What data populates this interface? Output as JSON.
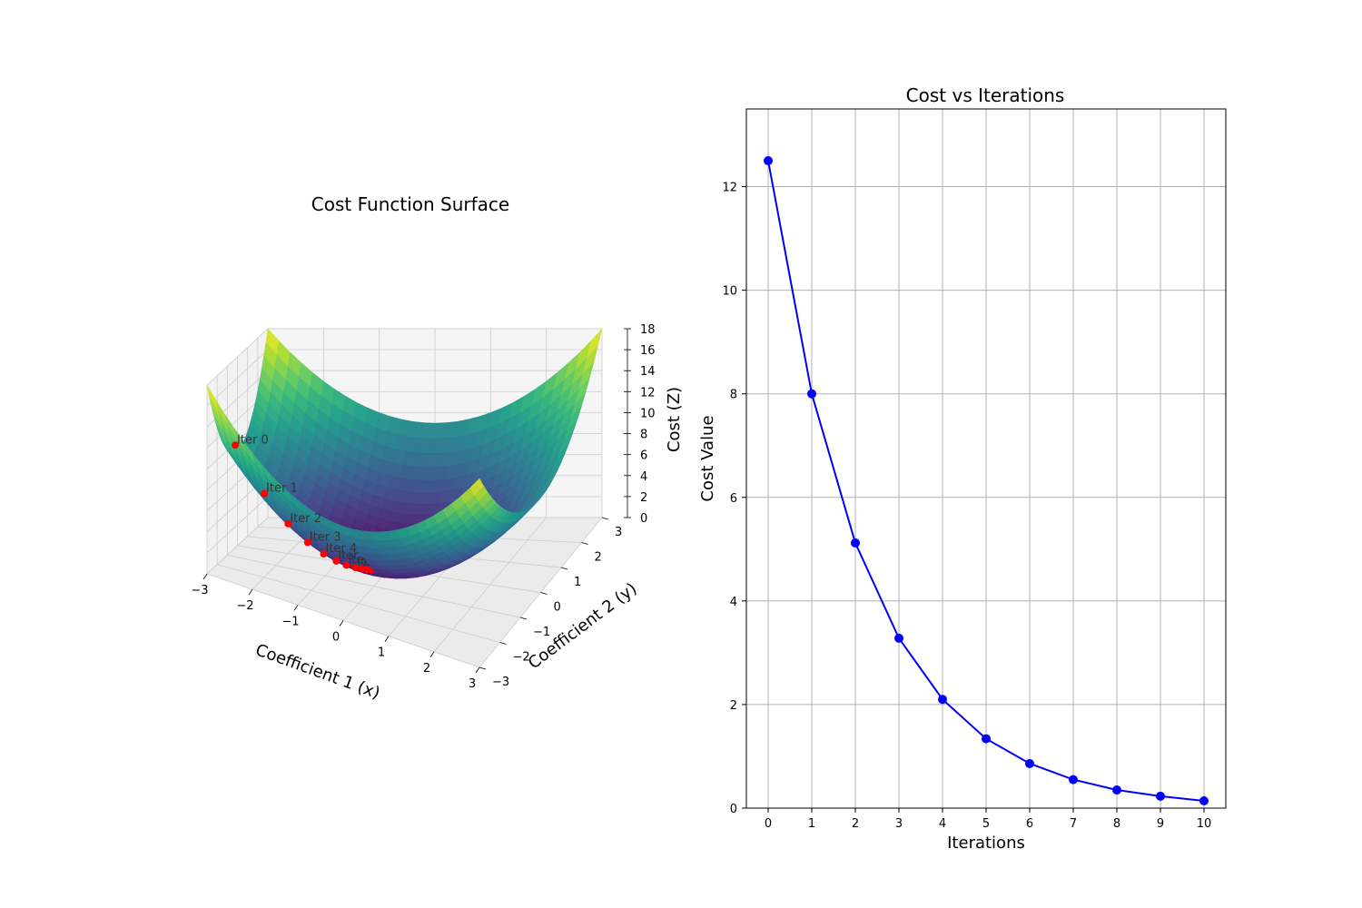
{
  "chart_data": [
    {
      "type": "surface3d",
      "title": "Cost Function Surface",
      "xlabel": "Coefficient 1 (x)",
      "ylabel": "Coefficient 2 (y)",
      "zlabel": "Cost (Z)",
      "xlim": [
        -3,
        3
      ],
      "ylim": [
        -3,
        3
      ],
      "zlim": [
        0,
        18
      ],
      "x_ticks": [
        "−3",
        "−2",
        "−1",
        "0",
        "1",
        "2",
        "3"
      ],
      "y_ticks": [
        "−3",
        "−2",
        "−1",
        "0",
        "1",
        "2",
        "3"
      ],
      "z_ticks": [
        "0",
        "2",
        "4",
        "6",
        "8",
        "10",
        "12",
        "14",
        "16",
        "18"
      ],
      "function": "x^2 + y^2",
      "colormap": "viridis",
      "grid": true,
      "path_color": "#ff0000",
      "path": [
        {
          "label": "Iter 0",
          "x": -2.5,
          "y": -2.5,
          "z": 12.5
        },
        {
          "label": "Iter 1",
          "x": -2.0,
          "y": -2.0,
          "z": 8.0
        },
        {
          "label": "Iter 2",
          "x": -1.6,
          "y": -1.6,
          "z": 5.12
        },
        {
          "label": "Iter 3",
          "x": -1.28,
          "y": -1.28,
          "z": 3.28
        },
        {
          "label": "Iter 4",
          "x": -1.02,
          "y": -1.02,
          "z": 2.1
        },
        {
          "label": "Iter 5",
          "x": -0.82,
          "y": -0.82,
          "z": 1.34
        },
        {
          "label": "Iter 6",
          "x": -0.66,
          "y": -0.66,
          "z": 0.86
        },
        {
          "label": "Iter 7",
          "x": -0.52,
          "y": -0.52,
          "z": 0.55
        },
        {
          "label": "Iter 8",
          "x": -0.42,
          "y": -0.42,
          "z": 0.35
        },
        {
          "label": "Iter 9",
          "x": -0.34,
          "y": -0.34,
          "z": 0.23
        },
        {
          "label": "Iter 10",
          "x": -0.27,
          "y": -0.27,
          "z": 0.14
        }
      ]
    },
    {
      "type": "line",
      "title": "Cost vs Iterations",
      "xlabel": "Iterations",
      "ylabel": "Cost Value",
      "x": [
        0,
        1,
        2,
        3,
        4,
        5,
        6,
        7,
        8,
        9,
        10
      ],
      "series": [
        {
          "values": [
            12.5,
            8.0,
            5.12,
            3.28,
            2.1,
            1.34,
            0.86,
            0.55,
            0.35,
            0.23,
            0.14
          ],
          "color": "#0000ff",
          "marker": "circle"
        }
      ],
      "xlim": [
        -0.5,
        10.5
      ],
      "ylim": [
        0,
        13.5
      ],
      "x_ticks": [
        0,
        1,
        2,
        3,
        4,
        5,
        6,
        7,
        8,
        9,
        10
      ],
      "y_ticks": [
        0,
        2,
        4,
        6,
        8,
        10,
        12
      ],
      "grid": true,
      "grid_color": "#b0b0b0"
    }
  ]
}
